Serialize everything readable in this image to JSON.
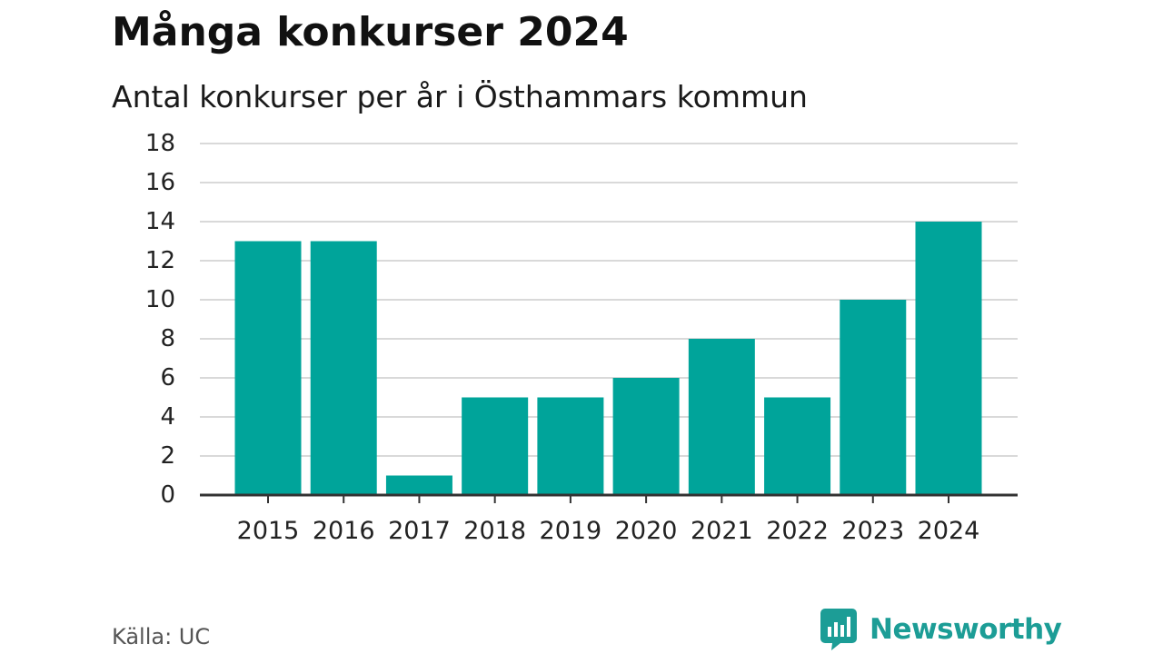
{
  "title": "Många konkurser 2024",
  "subtitle": "Antal konkurser per år i Östhammars kommun",
  "source": "Källa: UC",
  "brand": {
    "name": "Newsworthy",
    "icon": "newsworthy-logo-icon",
    "color": "#1c9d96"
  },
  "colors": {
    "bar": "#00a49a",
    "grid": "#d9d9d9",
    "axis": "#333333"
  },
  "chart_data": {
    "type": "bar",
    "title": "Många konkurser 2024",
    "subtitle": "Antal konkurser per år i Östhammars kommun",
    "xlabel": "",
    "ylabel": "",
    "categories": [
      "2015",
      "2016",
      "2017",
      "2018",
      "2019",
      "2020",
      "2021",
      "2022",
      "2023",
      "2024"
    ],
    "values": [
      13,
      13,
      1,
      5,
      5,
      6,
      8,
      5,
      10,
      14
    ],
    "ylim": [
      0,
      18
    ],
    "yticks": [
      "0",
      "2",
      "4",
      "6",
      "8",
      "10",
      "12",
      "14",
      "16",
      "18"
    ],
    "grid": true,
    "legend": false
  }
}
